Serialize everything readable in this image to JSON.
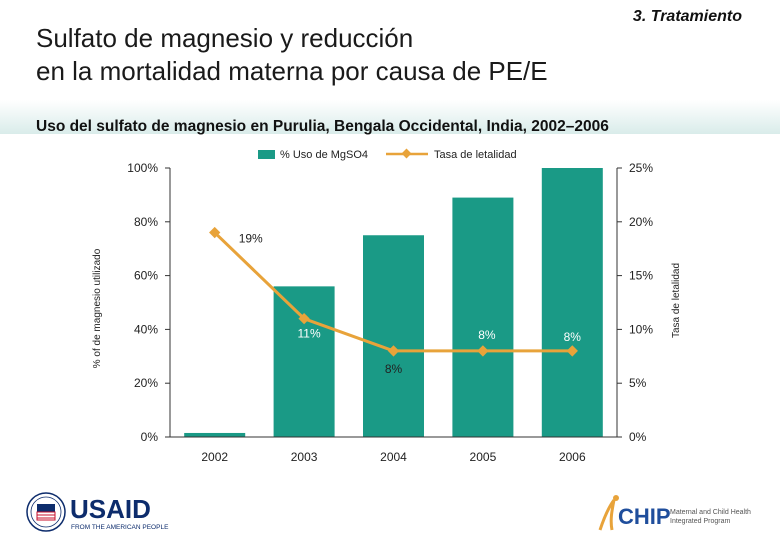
{
  "header": {
    "section": "3. Tratamiento",
    "title_line1": "Sulfato de magnesio y reducción",
    "title_line2": "en la mortalidad materna por causa de PE/E",
    "subtitle": "Uso del sulfato de magnesio en Purulia, Bengala Occidental, India, 2002–2006"
  },
  "chart_data": {
    "type": "bar",
    "categories": [
      "2002",
      "2003",
      "2004",
      "2005",
      "2006"
    ],
    "series": [
      {
        "name": "% Uso de MgSO4",
        "type": "bar",
        "axis": "left",
        "color": "#1a9a86",
        "values": [
          1.5,
          56,
          75,
          89,
          100
        ]
      },
      {
        "name": "Tasa de letalidad",
        "type": "line",
        "axis": "right",
        "color": "#e8a33a",
        "values": [
          19,
          11,
          8,
          8,
          8
        ],
        "labels": [
          "19%",
          "11%",
          "8%",
          "8%",
          "8%"
        ]
      }
    ],
    "y_left": {
      "label": "% of de magnesio utilizado",
      "ylim": [
        0,
        100
      ],
      "ticks": [
        "0%",
        "20%",
        "40%",
        "60%",
        "80%",
        "100%"
      ]
    },
    "y_right": {
      "label": "Tasa de letalidad",
      "ylim": [
        0,
        25
      ],
      "ticks": [
        "0%",
        "5%",
        "10%",
        "15%",
        "20%",
        "25%"
      ]
    },
    "legend": "top",
    "grid": false
  },
  "footer": {
    "usaid_wordmark": "USAID",
    "usaid_tagline": "FROM THE AMERICAN PEOPLE",
    "mchip_wordmark": "CHIP",
    "mchip_line1": "Maternal and Child Health",
    "mchip_line2": "Integrated Program"
  },
  "colors": {
    "bar": "#1a9a86",
    "line": "#e8a33a",
    "usaid_blue": "#0d2c6c",
    "usaid_red": "#c8102e",
    "mchip_blue": "#1f4e9c",
    "mchip_orange": "#e8a33a"
  }
}
